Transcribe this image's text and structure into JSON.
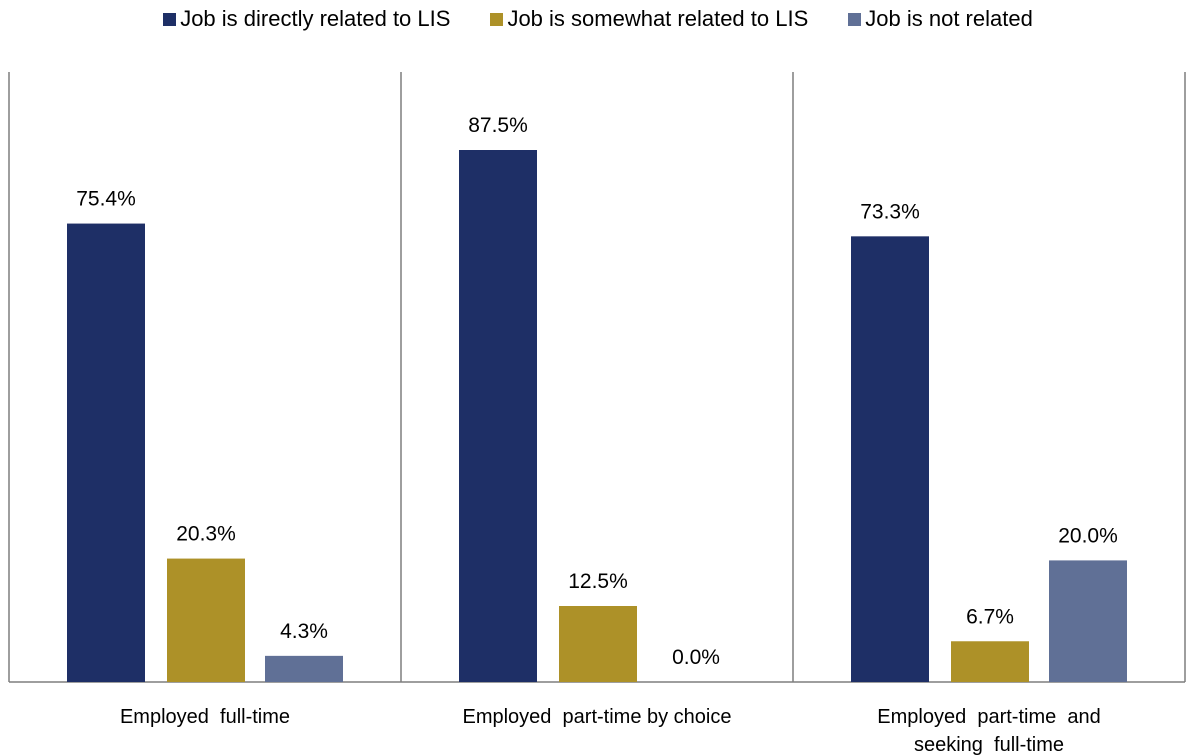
{
  "colors": {
    "directly": "#1e2f66",
    "somewhat": "#ad9128",
    "not": "#607096",
    "axis": "#7f7f7f"
  },
  "chart_data": {
    "type": "bar",
    "categories": [
      [
        "Employed  full-time"
      ],
      [
        "Employed  part-time by choice"
      ],
      [
        "Employed  part-time  and",
        "seeking  full-time"
      ]
    ],
    "series": [
      {
        "name": "Job is directly related to LIS",
        "values": [
          75.4,
          87.5,
          73.3
        ],
        "labels": [
          "75.4%",
          "87.5%",
          "73.3%"
        ]
      },
      {
        "name": "Job is somewhat related to LIS",
        "values": [
          20.3,
          12.5,
          6.7
        ],
        "labels": [
          "20.3%",
          "12.5%",
          "6.7%"
        ]
      },
      {
        "name": "Job is not related",
        "values": [
          4.3,
          0.0,
          20.0
        ],
        "labels": [
          "4.3%",
          "0.0%",
          "20.0%"
        ]
      }
    ],
    "ylim": [
      0,
      100
    ],
    "grid": false,
    "legend_position": "top"
  }
}
